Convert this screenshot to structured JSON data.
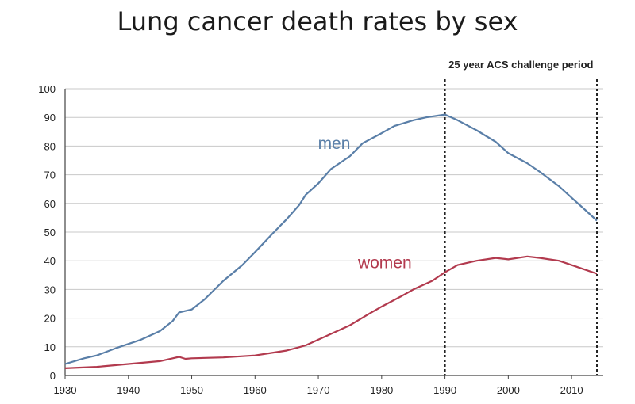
{
  "chart_data": {
    "type": "line",
    "title": "Lung cancer death rates by sex",
    "xlabel": "",
    "ylabel": "",
    "xlim": [
      1930,
      2015
    ],
    "ylim": [
      0,
      100
    ],
    "x_ticks": [
      1930,
      1940,
      1950,
      1960,
      1970,
      1980,
      1990,
      2000,
      2010
    ],
    "y_ticks": [
      0,
      10,
      20,
      30,
      40,
      50,
      60,
      70,
      80,
      90,
      100
    ],
    "grid": "horizontal",
    "annotation": {
      "text": "25 year ACS challenge period",
      "start_year": 1990,
      "end_year": 2014
    },
    "series": [
      {
        "name": "men",
        "color": "#5a7fa8",
        "x": [
          1930,
          1933,
          1935,
          1938,
          1940,
          1942,
          1945,
          1947,
          1948,
          1949,
          1950,
          1952,
          1955,
          1958,
          1960,
          1963,
          1965,
          1967,
          1968,
          1970,
          1972,
          1975,
          1977,
          1980,
          1982,
          1985,
          1987,
          1990,
          1992,
          1995,
          1998,
          2000,
          2003,
          2005,
          2008,
          2010,
          2012,
          2014
        ],
        "values": [
          4,
          6,
          7,
          9.5,
          11,
          12.5,
          15.5,
          19,
          22,
          22.5,
          23,
          26.5,
          33,
          38.5,
          43,
          50,
          54.5,
          59.5,
          63,
          67,
          72,
          76.5,
          81,
          84.5,
          87,
          89,
          90,
          91,
          89,
          85.5,
          81.5,
          77.5,
          74,
          71,
          66,
          62,
          58,
          54
        ]
      },
      {
        "name": "women",
        "color": "#b23a4e",
        "x": [
          1930,
          1935,
          1940,
          1945,
          1947,
          1948,
          1949,
          1950,
          1955,
          1960,
          1963,
          1965,
          1968,
          1970,
          1975,
          1978,
          1980,
          1983,
          1985,
          1988,
          1990,
          1992,
          1995,
          1998,
          2000,
          2003,
          2005,
          2008,
          2010,
          2012,
          2014
        ],
        "values": [
          2.5,
          3,
          4,
          5,
          6,
          6.5,
          5.8,
          6,
          6.3,
          7,
          8,
          8.7,
          10.5,
          12.5,
          17.5,
          21.5,
          24,
          27.5,
          30,
          33,
          36,
          38.5,
          40,
          41,
          40.5,
          41.5,
          41,
          40,
          38.5,
          37,
          35.5
        ]
      }
    ]
  }
}
